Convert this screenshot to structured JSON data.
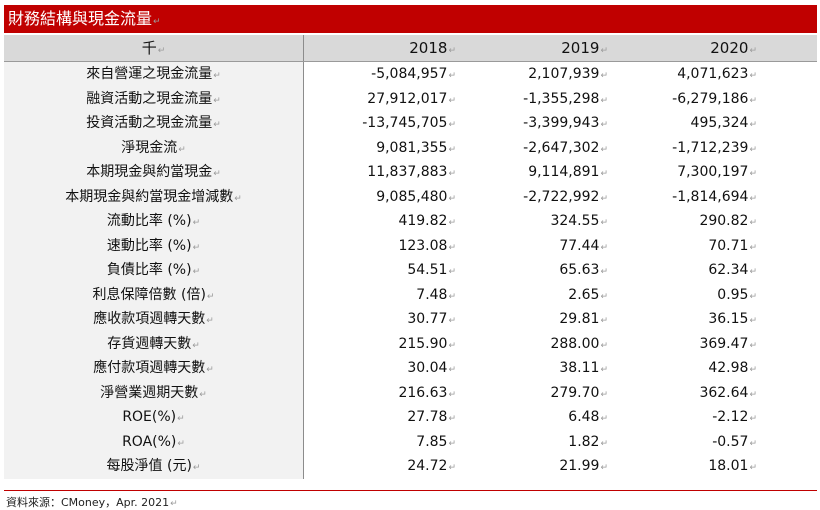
{
  "title": "財務結構與現金流量",
  "paragraph_mark": "↵",
  "columns": [
    "千",
    "2018",
    "2019",
    "2020"
  ],
  "rows": [
    {
      "label": "來自營運之現金流量",
      "values": [
        "-5,084,957",
        "2,107,939",
        "4,071,623"
      ]
    },
    {
      "label": "融資活動之現金流量",
      "values": [
        "27,912,017",
        "-1,355,298",
        "-6,279,186"
      ]
    },
    {
      "label": "投資活動之現金流量",
      "values": [
        "-13,745,705",
        "-3,399,943",
        "495,324"
      ]
    },
    {
      "label": "淨現金流",
      "values": [
        "9,081,355",
        "-2,647,302",
        "-1,712,239"
      ]
    },
    {
      "label": "本期現金與約當現金",
      "values": [
        "11,837,883",
        "9,114,891",
        "7,300,197"
      ]
    },
    {
      "label": "本期現金與約當現金增減數",
      "values": [
        "9,085,480",
        "-2,722,992",
        "-1,814,694"
      ]
    },
    {
      "label": "流動比率 (%)",
      "values": [
        "419.82",
        "324.55",
        "290.82"
      ]
    },
    {
      "label": "速動比率 (%)",
      "values": [
        "123.08",
        "77.44",
        "70.71"
      ]
    },
    {
      "label": "負債比率 (%)",
      "values": [
        "54.51",
        "65.63",
        "62.34"
      ]
    },
    {
      "label": "利息保障倍數 (倍)",
      "values": [
        "7.48",
        "2.65",
        "0.95"
      ]
    },
    {
      "label": "應收款項週轉天數",
      "values": [
        "30.77",
        "29.81",
        "36.15"
      ]
    },
    {
      "label": "存貨週轉天數",
      "values": [
        "215.90",
        "288.00",
        "369.47"
      ]
    },
    {
      "label": "應付款項週轉天數",
      "values": [
        "30.04",
        "38.11",
        "42.98"
      ]
    },
    {
      "label": "淨營業週期天數",
      "values": [
        "216.63",
        "279.70",
        "362.64"
      ]
    },
    {
      "label": "ROE(%)",
      "values": [
        "27.78",
        "6.48",
        "-2.12"
      ]
    },
    {
      "label": "ROA(%)",
      "values": [
        "7.85",
        "1.82",
        "-0.57"
      ]
    },
    {
      "label": "每股淨值 (元)",
      "values": [
        "24.72",
        "21.99",
        "18.01"
      ]
    }
  ],
  "source": "資料來源：CMoney，Apr. 2021"
}
